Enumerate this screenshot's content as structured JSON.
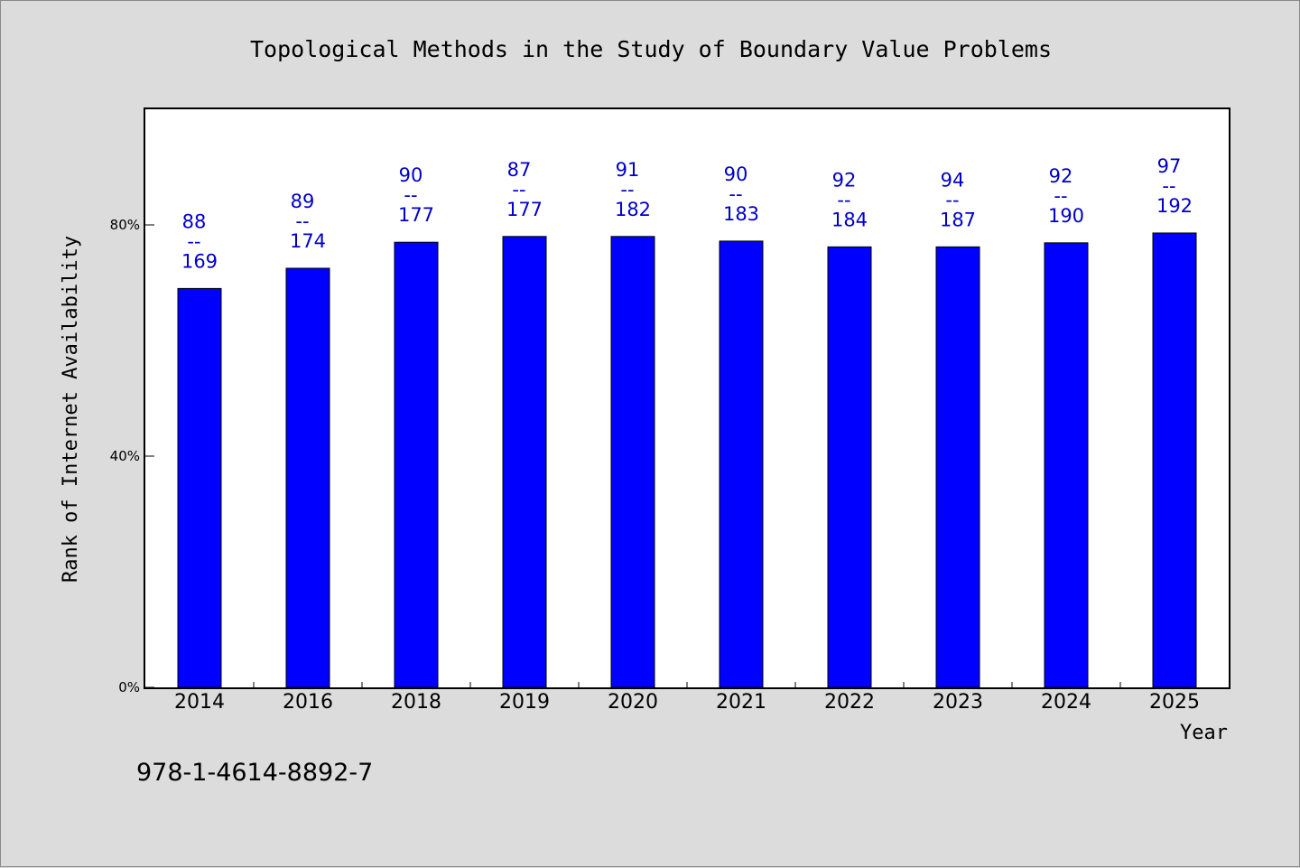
{
  "chart_data": {
    "type": "bar",
    "title": "Topological Methods in the Study of Boundary Value Problems",
    "xlabel": "Year",
    "ylabel": "Rank of Internet Availability",
    "categories": [
      "2014",
      "2016",
      "2018",
      "2019",
      "2020",
      "2021",
      "2022",
      "2023",
      "2024",
      "2025"
    ],
    "series": [
      {
        "values": [
          69,
          72.5,
          77,
          78,
          78,
          77.2,
          76.2,
          76.2,
          76.9,
          78.6
        ],
        "labels_top": [
          "88",
          "89",
          "90",
          "87",
          "91",
          "90",
          "92",
          "94",
          "92",
          "97"
        ],
        "labels_bottom": [
          "169",
          "174",
          "177",
          "177",
          "182",
          "183",
          "184",
          "187",
          "190",
          "192"
        ],
        "color": "#0000ff"
      }
    ],
    "label_separator": "--",
    "ylim": [
      0,
      100
    ],
    "yticks": [
      0,
      40,
      80
    ],
    "ytick_labels": [
      "0%",
      "40%",
      "80%"
    ],
    "grid": false,
    "legend": "none"
  },
  "footer": {
    "isbn": "978-1-4614-8892-7"
  }
}
